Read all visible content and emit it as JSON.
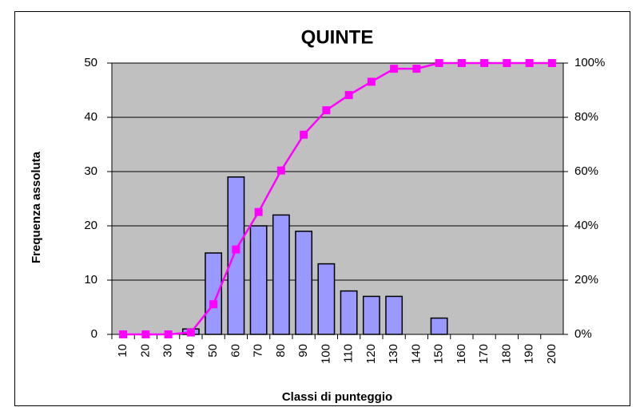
{
  "chart_data": {
    "type": "bar",
    "title": "QUINTE",
    "x_label": "Classi di punteggio",
    "y_label": "Frequenza assoluta",
    "categories": [
      "10",
      "20",
      "30",
      "40",
      "50",
      "60",
      "70",
      "80",
      "90",
      "100",
      "110",
      "120",
      "130",
      "140",
      "150",
      "160",
      "170",
      "180",
      "190",
      "200"
    ],
    "series": [
      {
        "type": "bar",
        "color": "#9999ff",
        "values": [
          0,
          0,
          0,
          1,
          15,
          29,
          20,
          22,
          19,
          13,
          8,
          7,
          7,
          0,
          3,
          0,
          0,
          0,
          0,
          0
        ]
      },
      {
        "type": "line",
        "axis": "y2",
        "color": "#ff00ff",
        "values": [
          0,
          0,
          0,
          0.7,
          11.1,
          31.3,
          45.1,
          60.4,
          73.6,
          82.6,
          88.2,
          93.1,
          97.9,
          97.9,
          100,
          100,
          100,
          100,
          100,
          100
        ]
      }
    ],
    "ylim": [
      0,
      50
    ],
    "yticks": [
      0,
      10,
      20,
      30,
      40,
      50
    ],
    "y2lim": [
      0,
      100
    ],
    "y2ticks": [
      {
        "value": 0,
        "label": "0%"
      },
      {
        "value": 20,
        "label": "20%"
      },
      {
        "value": 40,
        "label": "40%"
      },
      {
        "value": 60,
        "label": "60%"
      },
      {
        "value": 80,
        "label": "80%"
      },
      {
        "value": 100,
        "label": "100%"
      }
    ],
    "grid": true,
    "plot_background": "#c0c0c0"
  }
}
